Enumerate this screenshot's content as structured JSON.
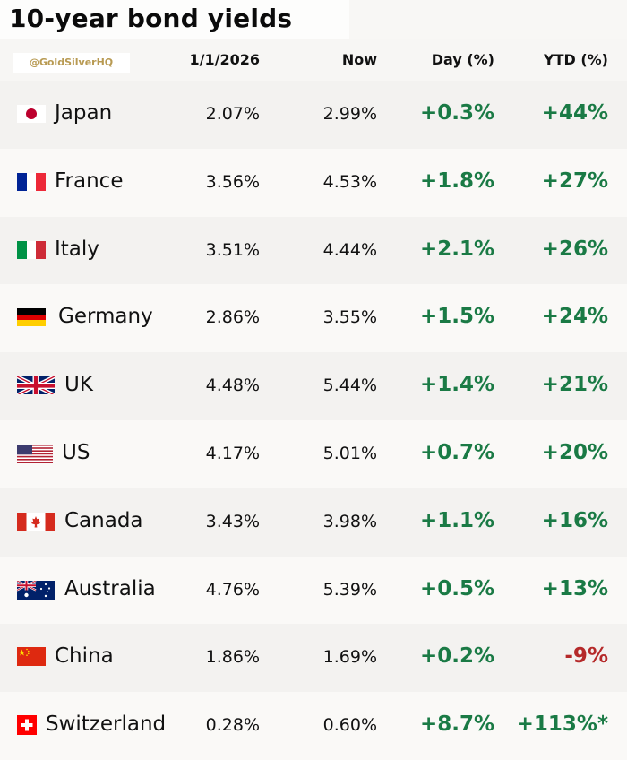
{
  "title": "10-year bond yields",
  "watermark": "@GoldSilverHQ",
  "columns": {
    "start": "1/1/2026",
    "now": "Now",
    "day": "Day (%)",
    "ytd": "YTD (%)"
  },
  "colors": {
    "positive": "#1a7a45",
    "negative": "#b52a2a"
  },
  "rows": [
    {
      "country": "Japan",
      "flag": "japan-flag-icon",
      "start": "2.07%",
      "now": "2.99%",
      "day": "+0.3%",
      "ytd": "+44%"
    },
    {
      "country": "France",
      "flag": "france-flag-icon",
      "start": "3.56%",
      "now": "4.53%",
      "day": "+1.8%",
      "ytd": "+27%"
    },
    {
      "country": "Italy",
      "flag": "italy-flag-icon",
      "start": "3.51%",
      "now": "4.44%",
      "day": "+2.1%",
      "ytd": "+26%"
    },
    {
      "country": "Germany",
      "flag": "germany-flag-icon",
      "start": "2.86%",
      "now": "3.55%",
      "day": "+1.5%",
      "ytd": "+24%"
    },
    {
      "country": "UK",
      "flag": "uk-flag-icon",
      "start": "4.48%",
      "now": "5.44%",
      "day": "+1.4%",
      "ytd": "+21%"
    },
    {
      "country": "US",
      "flag": "us-flag-icon",
      "start": "4.17%",
      "now": "5.01%",
      "day": "+0.7%",
      "ytd": "+20%"
    },
    {
      "country": "Canada",
      "flag": "canada-flag-icon",
      "start": "3.43%",
      "now": "3.98%",
      "day": "+1.1%",
      "ytd": "+16%"
    },
    {
      "country": "Australia",
      "flag": "australia-flag-icon",
      "start": "4.76%",
      "now": "5.39%",
      "day": "+0.5%",
      "ytd": "+13%"
    },
    {
      "country": "China",
      "flag": "china-flag-icon",
      "start": "1.86%",
      "now": "1.69%",
      "day": "+0.2%",
      "ytd": "-9%"
    },
    {
      "country": "Switzerland",
      "flag": "switzerland-flag-icon",
      "start": "0.28%",
      "now": "0.60%",
      "day": "+8.7%",
      "ytd": "+113%*"
    }
  ]
}
